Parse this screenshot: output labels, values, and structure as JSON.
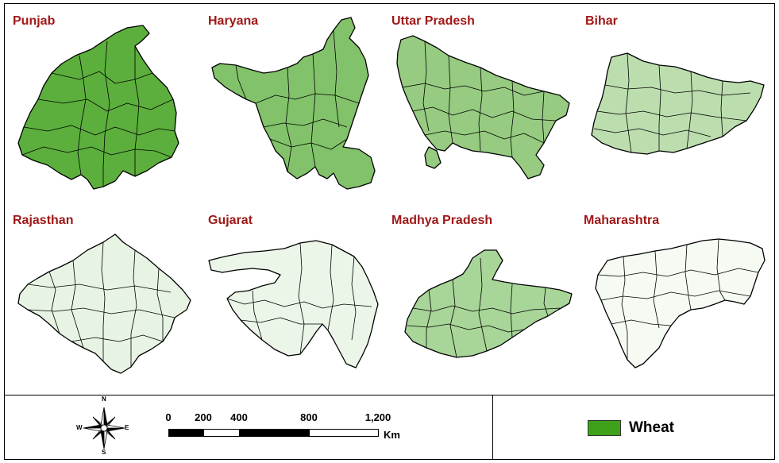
{
  "map": {
    "panels": [
      {
        "name": "Punjab",
        "wheat_coverage": 0.85
      },
      {
        "name": "Haryana",
        "wheat_coverage": 0.65
      },
      {
        "name": "Uttar Pradesh",
        "wheat_coverage": 0.55
      },
      {
        "name": "Bihar",
        "wheat_coverage": 0.35
      },
      {
        "name": "Rajasthan",
        "wheat_coverage": 0.12
      },
      {
        "name": "Gujarat",
        "wheat_coverage": 0.1
      },
      {
        "name": "Madhya Pradesh",
        "wheat_coverage": 0.45
      },
      {
        "name": "Maharashtra",
        "wheat_coverage": 0.05
      }
    ],
    "colors": {
      "label": "#a01818",
      "wheat": "#3fa11a",
      "boundary": "#000000"
    }
  },
  "compass": {
    "n": "N",
    "s": "S",
    "e": "E",
    "w": "W"
  },
  "scale": {
    "ticks": [
      "0",
      "200",
      "400",
      "800",
      "1,200"
    ],
    "unit": "Km"
  },
  "legend": {
    "label": "Wheat",
    "color": "#3fa11a"
  }
}
